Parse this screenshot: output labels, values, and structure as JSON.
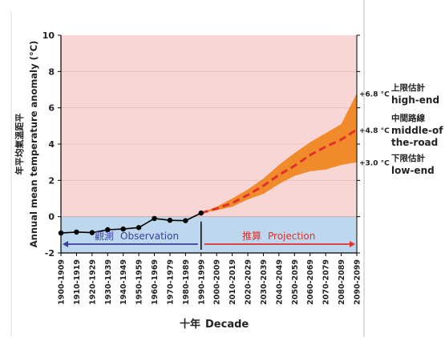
{
  "chart_data": {
    "type": "line",
    "ylabel_cn": "年平均氣溫距平",
    "ylabel_en": "Annual mean temperature anomaly (°C)",
    "xlabel_cn": "十年",
    "xlabel_en": "Decade",
    "ylim": [
      -2,
      10
    ],
    "y_ticks": [
      -2,
      0,
      2,
      4,
      6,
      8,
      10
    ],
    "categories": [
      "1900-1909",
      "1910-1919",
      "1920-1929",
      "1930-1939",
      "1940-1949",
      "1950-1959",
      "1960-1969",
      "1970-1979",
      "1980-1989",
      "1990-1999",
      "2000-2009",
      "2010-2019",
      "2020-2029",
      "2030-2039",
      "2040-2049",
      "2050-2059",
      "2060-2069",
      "2070-2079",
      "2080-2089",
      "2090-2099"
    ],
    "observation": {
      "label_cn": "觀測",
      "label_en": "Observation",
      "values": [
        -0.9,
        -0.85,
        -0.88,
        -0.72,
        -0.68,
        -0.6,
        -0.1,
        -0.2,
        -0.22,
        0.2
      ]
    },
    "projection": {
      "label_cn": "推算",
      "label_en": "Projection",
      "middle": [
        0.2,
        0.45,
        0.75,
        1.2,
        1.7,
        2.3,
        2.8,
        3.4,
        3.85,
        4.25,
        4.8
      ],
      "high": [
        0.2,
        0.55,
        1.0,
        1.5,
        2.1,
        2.85,
        3.5,
        4.1,
        4.6,
        5.1,
        6.8
      ],
      "low": [
        0.2,
        0.35,
        0.55,
        0.95,
        1.25,
        1.8,
        2.25,
        2.5,
        2.6,
        2.85,
        3.0
      ]
    },
    "annotations": [
      {
        "value_text": "+6.8 °C",
        "label_cn": "上限估計",
        "label_en": "high-end",
        "y": 6.8
      },
      {
        "value_text": "+4.8 °C",
        "label_cn": "中間路線",
        "label_en": "middle-of-the-road",
        "label_en_line1": "middle-of",
        "label_en_line2": "the-road",
        "y": 4.8
      },
      {
        "value_text": "+3.0 °C",
        "label_cn": "下限估計",
        "label_en": "low-end",
        "y": 3.0
      }
    ],
    "colors": {
      "upper_background": "#f9d6d6",
      "lower_background": "#bcd7ee",
      "observation_line": "#000000",
      "projection_line": "#e0312b",
      "projection_band": "#f08a2a",
      "observation_arrow": "#3b3f9c",
      "projection_arrow": "#e0312b",
      "grid": "#e8b8b8"
    }
  }
}
